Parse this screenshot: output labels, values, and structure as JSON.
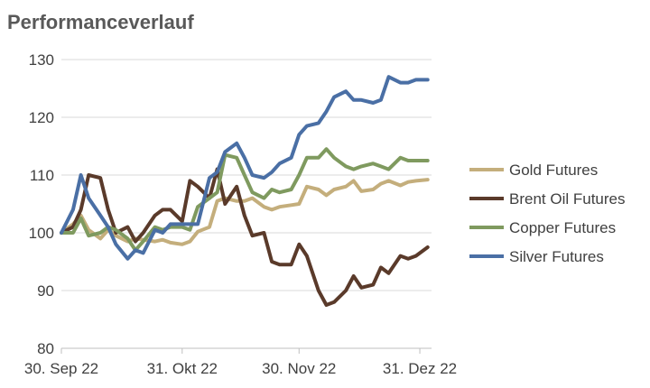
{
  "chart_data": {
    "type": "line",
    "title": "Performanceverlauf",
    "xlabel": "",
    "ylabel": "",
    "ylim": [
      80,
      130
    ],
    "yticks": [
      80,
      90,
      100,
      110,
      120,
      130
    ],
    "xlim": [
      "2022-09-30",
      "2023-01-03"
    ],
    "xticks": [
      {
        "date": "2022-09-30",
        "label": "30. Sep 22"
      },
      {
        "date": "2022-10-31",
        "label": "31. Okt 22"
      },
      {
        "date": "2022-11-30",
        "label": "30. Nov 22"
      },
      {
        "date": "2022-12-31",
        "label": "31. Dez 22"
      }
    ],
    "grid": "horizontal",
    "legend": "right",
    "x": [
      "2022-09-30",
      "2022-10-03",
      "2022-10-05",
      "2022-10-07",
      "2022-10-10",
      "2022-10-12",
      "2022-10-14",
      "2022-10-17",
      "2022-10-19",
      "2022-10-21",
      "2022-10-24",
      "2022-10-26",
      "2022-10-28",
      "2022-10-31",
      "2022-11-02",
      "2022-11-04",
      "2022-11-07",
      "2022-11-09",
      "2022-11-11",
      "2022-11-14",
      "2022-11-16",
      "2022-11-18",
      "2022-11-21",
      "2022-11-23",
      "2022-11-25",
      "2022-11-28",
      "2022-11-30",
      "2022-12-02",
      "2022-12-05",
      "2022-12-07",
      "2022-12-09",
      "2022-12-12",
      "2022-12-14",
      "2022-12-16",
      "2022-12-19",
      "2022-12-21",
      "2022-12-23",
      "2022-12-26",
      "2022-12-28",
      "2022-12-30",
      "2023-01-02"
    ],
    "series": [
      {
        "name": "Gold Futures",
        "color": "#C4AE7C",
        "values": [
          100,
          101.5,
          103,
          100.5,
          99,
          100.5,
          99.5,
          98.5,
          99,
          98.8,
          98.5,
          98.8,
          98.3,
          98,
          98.5,
          100.2,
          101,
          105.5,
          106,
          105.5,
          105.5,
          106,
          104.5,
          104,
          104.5,
          104.8,
          105,
          108,
          107.5,
          106.5,
          107.5,
          108,
          109,
          107.2,
          107.5,
          108.5,
          109,
          108.2,
          108.8,
          109,
          109.2
        ]
      },
      {
        "name": "Brent Oil Futures",
        "color": "#5A3A2A",
        "values": [
          100,
          101,
          104,
          110,
          109.5,
          104,
          100,
          101,
          98.5,
          100,
          103,
          104,
          104,
          102,
          109,
          108,
          106,
          111,
          105,
          108,
          103,
          99.5,
          100,
          95,
          94.5,
          94.5,
          98,
          96,
          90,
          87.5,
          88,
          90,
          92.5,
          90.5,
          91,
          94,
          93,
          96,
          95.5,
          96,
          97.5
        ]
      },
      {
        "name": "Copper Futures",
        "color": "#7F9A5F",
        "values": [
          100,
          100,
          102.5,
          99.5,
          100,
          101,
          100.5,
          99,
          97,
          98.5,
          101,
          100.5,
          101,
          101,
          100.5,
          104.5,
          106,
          107,
          113.5,
          113,
          110,
          107,
          106,
          107.5,
          107,
          107.5,
          110,
          113,
          113,
          114.5,
          113,
          111.5,
          111,
          111.5,
          112,
          111.5,
          111,
          113,
          112.5,
          112.5,
          112.5
        ]
      },
      {
        "name": "Silver Futures",
        "color": "#4A6FA5",
        "values": [
          100,
          104,
          110,
          106,
          103,
          101,
          98,
          95.5,
          97,
          96.5,
          100.5,
          100,
          101.5,
          101.5,
          101.5,
          101.5,
          109.5,
          110.5,
          114,
          115.5,
          113,
          110,
          109.5,
          110.5,
          112,
          113,
          117,
          118.5,
          119,
          121,
          123.5,
          124.5,
          123,
          123,
          122.5,
          123,
          127,
          126,
          126,
          126.5,
          126.5
        ]
      }
    ]
  }
}
